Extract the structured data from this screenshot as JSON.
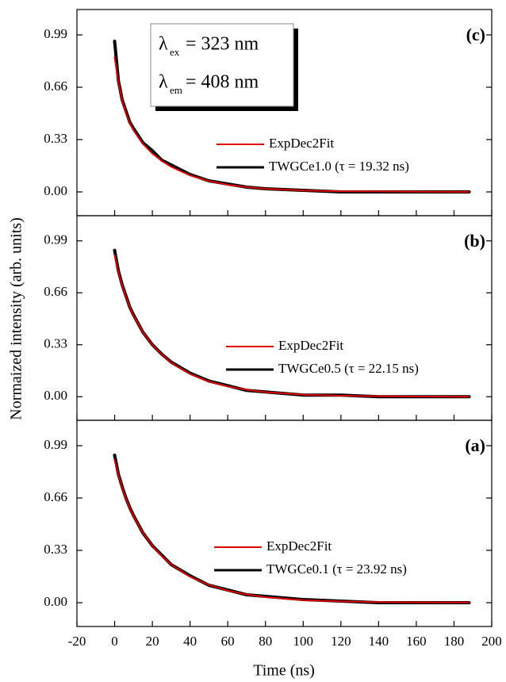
{
  "y_label": "Normaized intensity (arb. units)",
  "x_label": "Time (ns)",
  "chart_data": [
    {
      "type": "line",
      "panel_label": "(c)",
      "annotation": [
        {
          "symbol": "λ",
          "sub": "ex",
          "text": "= 323 nm"
        },
        {
          "symbol": "λ",
          "sub": "em",
          "text": "= 408 nm"
        }
      ],
      "x": [
        0,
        2,
        4,
        6,
        8,
        10,
        15,
        20,
        25,
        30,
        40,
        50,
        60,
        70,
        80,
        100,
        120,
        140,
        160,
        188
      ],
      "series": [
        {
          "name": "ExpDec2Fit",
          "color": "#e00000",
          "values": [
            0.85,
            0.689,
            0.577,
            0.497,
            0.436,
            0.389,
            0.303,
            0.242,
            0.196,
            0.158,
            0.104,
            0.069,
            0.045,
            0.03,
            0.02,
            0.009,
            0.004,
            0.003,
            0.001,
            0.0
          ]
        },
        {
          "name": "TWGCe1.0 (τ = 19.32 ns)",
          "color": "#000000",
          "values": [
            0.95,
            0.7,
            0.58,
            0.51,
            0.44,
            0.4,
            0.31,
            0.26,
            0.2,
            0.17,
            0.11,
            0.07,
            0.05,
            0.03,
            0.02,
            0.01,
            0.0,
            0.0,
            0.0,
            0.0
          ]
        }
      ],
      "xlim": [
        -20,
        200
      ],
      "xticks": [
        -20,
        0,
        20,
        40,
        60,
        80,
        100,
        120,
        140,
        160,
        180,
        200
      ],
      "ylim": [
        -0.15,
        1.15
      ],
      "yticks": [
        {
          "value": 0,
          "label": "0.00"
        },
        0.33,
        0.66,
        0.99
      ]
    },
    {
      "type": "line",
      "panel_label": "(b)",
      "x": [
        0,
        2,
        4,
        6,
        8,
        10,
        15,
        20,
        25,
        30,
        40,
        50,
        60,
        70,
        80,
        100,
        120,
        140,
        160,
        188
      ],
      "series": [
        {
          "name": "ExpDec2Fit",
          "color": "#e00000",
          "values": [
            0.9,
            0.793,
            0.706,
            0.633,
            0.571,
            0.517,
            0.41,
            0.33,
            0.268,
            0.217,
            0.145,
            0.097,
            0.065,
            0.044,
            0.029,
            0.013,
            0.006,
            0.003,
            0.001,
            0.0
          ]
        },
        {
          "name": "TWGCe0.5 (τ = 22.15 ns)",
          "color": "#000000",
          "values": [
            0.93,
            0.8,
            0.71,
            0.64,
            0.57,
            0.52,
            0.41,
            0.33,
            0.27,
            0.22,
            0.15,
            0.1,
            0.07,
            0.04,
            0.03,
            0.01,
            0.01,
            0.0,
            0.0,
            0.0
          ]
        }
      ],
      "xlim": [
        -20,
        200
      ],
      "xticks": [
        -20,
        0,
        20,
        40,
        60,
        80,
        100,
        120,
        140,
        160,
        180,
        200
      ],
      "ylim": [
        -0.15,
        1.15
      ],
      "yticks": [
        {
          "value": 0,
          "label": "0.00"
        },
        0.33,
        0.66,
        0.99
      ]
    },
    {
      "type": "line",
      "panel_label": "(a)",
      "x": [
        0,
        2,
        4,
        6,
        8,
        10,
        15,
        20,
        25,
        30,
        40,
        50,
        60,
        70,
        80,
        100,
        120,
        140,
        160,
        188
      ],
      "series": [
        {
          "name": "ExpDec2Fit",
          "color": "#e00000",
          "values": [
            0.9,
            0.806,
            0.725,
            0.657,
            0.598,
            0.546,
            0.441,
            0.359,
            0.294,
            0.241,
            0.164,
            0.112,
            0.076,
            0.052,
            0.035,
            0.016,
            0.008,
            0.004,
            0.002,
            0.001
          ]
        },
        {
          "name": "TWGCe0.1 (τ = 23.92 ns)",
          "color": "#000000",
          "values": [
            0.93,
            0.81,
            0.73,
            0.66,
            0.6,
            0.55,
            0.44,
            0.36,
            0.3,
            0.24,
            0.17,
            0.11,
            0.08,
            0.05,
            0.04,
            0.02,
            0.01,
            0.0,
            0.0,
            0.0
          ]
        }
      ],
      "xlim": [
        -20,
        200
      ],
      "xticks": [
        -20,
        0,
        20,
        40,
        60,
        80,
        100,
        120,
        140,
        160,
        180,
        200
      ],
      "ylim": [
        -0.15,
        1.15
      ],
      "yticks": [
        {
          "value": 0,
          "label": "0.00"
        },
        0.33,
        0.66,
        0.99
      ]
    }
  ]
}
